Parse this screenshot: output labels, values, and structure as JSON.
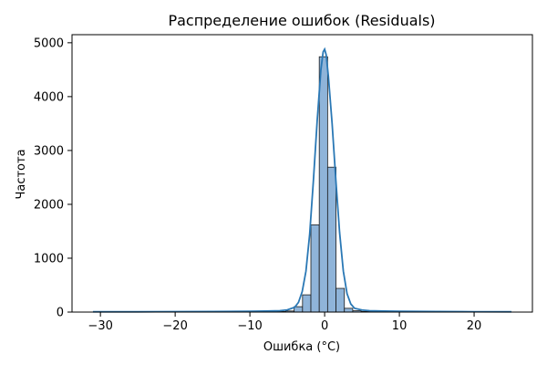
{
  "chart_data": {
    "type": "bar",
    "title": "Распределение ошибок (Residuals)",
    "xlabel": "Ошибка (°C)",
    "ylabel": "Частота",
    "xlim": [
      -33.8,
      27.8
    ],
    "ylim": [
      0,
      5150
    ],
    "xticks": [
      -30,
      -20,
      -10,
      0,
      10,
      20
    ],
    "xtick_labels": [
      "−30",
      "−20",
      "−10",
      "0",
      "10",
      "20"
    ],
    "yticks": [
      0,
      1000,
      2000,
      3000,
      4000,
      5000
    ],
    "ytick_labels": [
      "0",
      "1000",
      "2000",
      "3000",
      "4000",
      "5000"
    ],
    "bin_width": 1.12,
    "bins": [
      {
        "x0": -30.96,
        "count": 1
      },
      {
        "x0": -29.84,
        "count": 0
      },
      {
        "x0": -28.72,
        "count": 1
      },
      {
        "x0": -27.6,
        "count": 0
      },
      {
        "x0": -26.48,
        "count": 1
      },
      {
        "x0": -25.36,
        "count": 0
      },
      {
        "x0": -24.24,
        "count": 1
      },
      {
        "x0": -23.12,
        "count": 1
      },
      {
        "x0": -22.0,
        "count": 0
      },
      {
        "x0": -20.88,
        "count": 1
      },
      {
        "x0": -19.76,
        "count": 1
      },
      {
        "x0": -18.64,
        "count": 1
      },
      {
        "x0": -17.52,
        "count": 2
      },
      {
        "x0": -16.4,
        "count": 1
      },
      {
        "x0": -15.28,
        "count": 2
      },
      {
        "x0": -14.16,
        "count": 2
      },
      {
        "x0": -13.04,
        "count": 2
      },
      {
        "x0": -11.92,
        "count": 3
      },
      {
        "x0": -10.8,
        "count": 3
      },
      {
        "x0": -9.68,
        "count": 4
      },
      {
        "x0": -8.56,
        "count": 5
      },
      {
        "x0": -7.44,
        "count": 7
      },
      {
        "x0": -6.32,
        "count": 10
      },
      {
        "x0": -5.2,
        "count": 20
      },
      {
        "x0": -4.08,
        "count": 100
      },
      {
        "x0": -2.96,
        "count": 320
      },
      {
        "x0": -1.84,
        "count": 1620
      },
      {
        "x0": -0.72,
        "count": 4740
      },
      {
        "x0": 0.4,
        "count": 2690
      },
      {
        "x0": 1.52,
        "count": 440
      },
      {
        "x0": 2.64,
        "count": 70
      },
      {
        "x0": 3.76,
        "count": 25
      },
      {
        "x0": 4.88,
        "count": 12
      },
      {
        "x0": 6.0,
        "count": 8
      },
      {
        "x0": 7.12,
        "count": 6
      },
      {
        "x0": 8.24,
        "count": 5
      },
      {
        "x0": 9.36,
        "count": 4
      },
      {
        "x0": 10.48,
        "count": 3
      },
      {
        "x0": 11.6,
        "count": 3
      },
      {
        "x0": 12.72,
        "count": 2
      },
      {
        "x0": 13.84,
        "count": 2
      },
      {
        "x0": 14.96,
        "count": 2
      },
      {
        "x0": 16.08,
        "count": 1
      },
      {
        "x0": 17.2,
        "count": 1
      },
      {
        "x0": 18.32,
        "count": 1
      },
      {
        "x0": 19.44,
        "count": 1
      },
      {
        "x0": 20.56,
        "count": 1
      },
      {
        "x0": 21.68,
        "count": 0
      },
      {
        "x0": 22.8,
        "count": 1
      },
      {
        "x0": 23.92,
        "count": 1
      }
    ],
    "kde": {
      "x": [
        -31,
        -25,
        -20,
        -15,
        -10,
        -8,
        -6,
        -5,
        -4,
        -3.5,
        -3,
        -2.5,
        -2,
        -1.5,
        -1,
        -0.5,
        -0.2,
        0,
        0.2,
        0.5,
        1,
        1.5,
        2,
        2.5,
        3,
        3.5,
        4,
        5,
        6,
        8,
        10,
        15,
        20,
        25
      ],
      "y": [
        5,
        5,
        8,
        10,
        14,
        18,
        25,
        40,
        90,
        180,
        380,
        760,
        1450,
        2450,
        3550,
        4500,
        4830,
        4880,
        4780,
        4380,
        3500,
        2450,
        1480,
        760,
        340,
        150,
        70,
        38,
        25,
        18,
        14,
        10,
        7,
        5
      ]
    },
    "bar_fill": "#8fb4d9",
    "bar_stroke": "#1a1a1a",
    "kde_color": "#2a78b5",
    "grid": false,
    "legend": "none"
  }
}
